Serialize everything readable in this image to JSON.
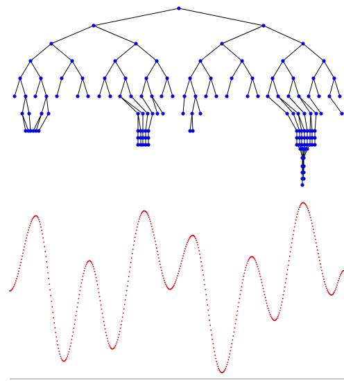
{
  "colors": {
    "node": "#0000ee",
    "edge": "#000000",
    "curve": "#dd0000",
    "baseline": "#888888"
  },
  "tree": {
    "levels": 16,
    "topology": "binary-tree-with-deep-left-branch-stacks"
  },
  "curve": {
    "type": "sampled-waveform",
    "samples": 480,
    "extrema": [
      {
        "kind": "max",
        "value": 0.92
      },
      {
        "kind": "min",
        "value": -0.86
      },
      {
        "kind": "max",
        "value": 0.37
      },
      {
        "kind": "min",
        "value": -0.71
      },
      {
        "kind": "max",
        "value": 0.98
      },
      {
        "kind": "min",
        "value": 0.02
      },
      {
        "kind": "max",
        "value": 0.68
      },
      {
        "kind": "min",
        "value": -1.0
      },
      {
        "kind": "max",
        "value": 0.42
      },
      {
        "kind": "min",
        "value": -0.36
      },
      {
        "kind": "max",
        "value": 1.08
      },
      {
        "kind": "min",
        "value": -0.05
      }
    ]
  }
}
